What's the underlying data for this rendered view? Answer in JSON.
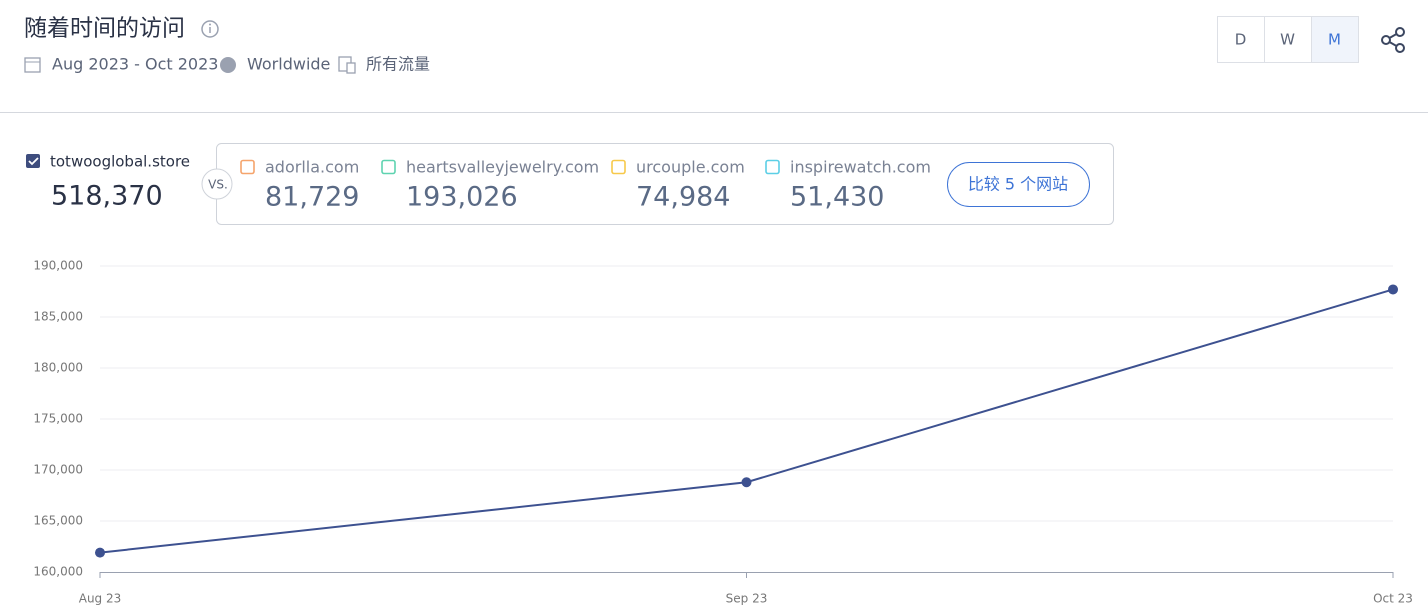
{
  "header": {
    "title": "随着时间的访问",
    "date_range": "Aug 2023 - Oct 2023",
    "region": "Worldwide",
    "traffic": "所有流量",
    "granularity": [
      "D",
      "W",
      "M"
    ]
  },
  "main_site": {
    "name": "totwooglobal.store",
    "visits": "518,370"
  },
  "vs_label": "VS.",
  "competitors": [
    {
      "name": "adorlla.com",
      "visits": "81,729",
      "color": "#f5a46c"
    },
    {
      "name": "heartsvalleyjewelry.com",
      "visits": "193,026",
      "color": "#5fd3b0"
    },
    {
      "name": "urcouple.com",
      "visits": "74,984",
      "color": "#f7c94b"
    },
    {
      "name": "inspirewatch.com",
      "visits": "51,430",
      "color": "#5ccfe6"
    }
  ],
  "compare_button": "比较 5 个网站",
  "chart_data": {
    "type": "line",
    "categories": [
      "Aug 23",
      "Sep 23",
      "Oct 23"
    ],
    "values": [
      161900,
      168800,
      187700
    ],
    "color": "#3d5190",
    "ylim": [
      160000,
      190000
    ],
    "yticks": [
      {
        "value": 160000,
        "label": "160,000"
      },
      {
        "value": 165000,
        "label": "165,000"
      },
      {
        "value": 170000,
        "label": "170,000"
      },
      {
        "value": 175000,
        "label": "175,000"
      },
      {
        "value": 180000,
        "label": "180,000"
      },
      {
        "value": 185000,
        "label": "185,000"
      },
      {
        "value": 190000,
        "label": "190,000"
      }
    ],
    "grid": true
  }
}
